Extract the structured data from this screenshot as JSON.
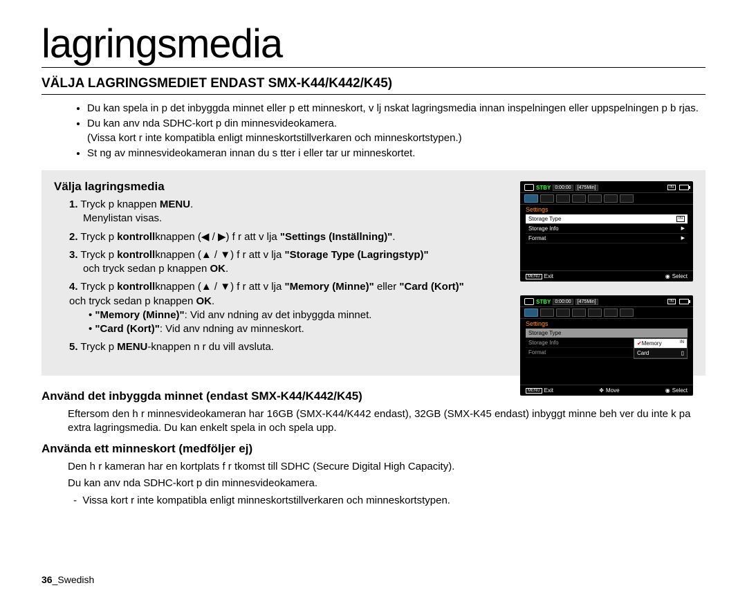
{
  "title": "lagringsmedia",
  "subtitle": "VÄLJA LAGRINGSMEDIET ENDAST SMX-K44/K442/K45)",
  "intro": [
    "Du kan spela in p  det inbyggda minnet eller p  ett minneskort, v lj  nskat lagringsmedia innan inspelningen eller uppspelningen p b rjas.",
    "Du kan anv nda SDHC-kort p  din minnesvideokamera.\n(Vissa kort  r inte kompatibla enligt minneskortstillverkaren och minneskortstypen.)",
    "St ng av minnesvideokameran innan du s tter i eller tar ur minneskortet."
  ],
  "steps_head": "Välja lagringsmedia",
  "steps": {
    "s1a": "Tryck p  knappen ",
    "s1_menu": "MENU",
    "s1b": ".",
    "s1c": "Menylistan visas.",
    "s2a": "Tryck p  ",
    "s2_k": "kontroll",
    "s2b": "knappen (◀ / ▶) f r att v lja   ",
    "s2q": "\"Settings (Inställning)\"",
    "s2c": ".",
    "s3a": "Tryck p  ",
    "s3_k": "kontroll",
    "s3b": "knappen (▲ / ▼) f r att v lja   ",
    "s3q": "\"Storage Type (Lagringstyp)\"",
    "s3c": " och tryck sedan p  knappen  ",
    "s3_ok": "OK",
    "s3d": ".",
    "s4a": "Tryck p  ",
    "s4_k": "kontroll",
    "s4b": "knappen (▲ / ▼) f r att v lja   ",
    "s4q1": "\"Memory (Minne)\"",
    "s4mid": " eller ",
    "s4q2": "\"Card (Kort)\"",
    "s4c": " och tryck sedan p  knappen  ",
    "s4_ok": "OK",
    "s4d": ".",
    "s4_sub1a": "\"Memory (Minne)\"",
    "s4_sub1b": ": Vid anv ndning av det inbyggda minnet.",
    "s4_sub2a": "\"Card (Kort)\"",
    "s4_sub2b": ": Vid anv ndning av minneskort.",
    "s5a": "Tryck p  ",
    "s5_menu": "MENU",
    "s5b": "-knappen n r du vill avsluta."
  },
  "lower": {
    "h1": "Använd det inbyggda minnet (endast SMX-K44/K442/K45)",
    "p1": "Eftersom den h r minnesvideokameran har 16GB (SMX-K44/K442 endast), 32GB (SMX-K45 endast) inbyggt minne beh ver du inte k pa extra lagringsmedia. Du kan enkelt spela in och spela upp.",
    "h2": "Använda ett minneskort (medföljer ej)",
    "p2a": "Den h r kameran har en kortplats f r  tkomst till SDHC (Secure Digital High Capacity).",
    "p2b": "Du kan anv nda SDHC-kort p  din minnesvideokamera.",
    "p2c": "Vissa kort  r inte kompatibla enligt minneskortstillverkaren och minneskortstypen."
  },
  "footer_page": "36",
  "footer_lang": "_Swedish",
  "screen": {
    "stby": "STBY",
    "time": "0:00:00",
    "dur": "[475Min]",
    "in": "IN",
    "settings": "Settings",
    "storage_type": "Storage Type",
    "storage_info": "Storage Info",
    "format": "Format",
    "menu": "MENU",
    "exit": "Exit",
    "select": "Select",
    "move": "Move",
    "memory": "Memory",
    "card": "Card"
  },
  "colors": {
    "graybox": "#eaeaea",
    "stby_green": "#2dff2d",
    "settings_orange": "#ff9020",
    "check_red": "#d00000"
  }
}
